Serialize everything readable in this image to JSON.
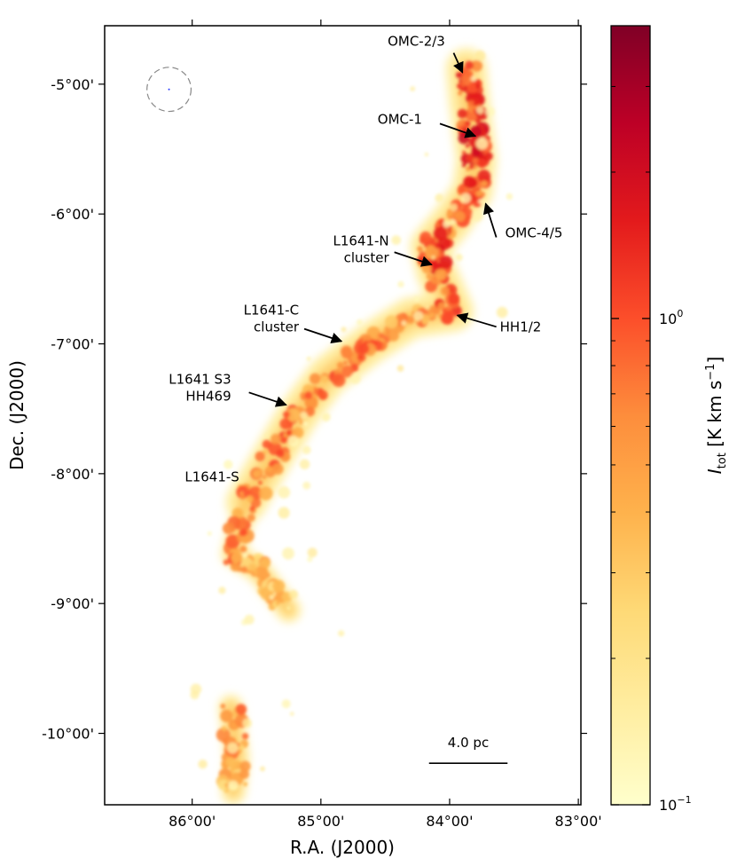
{
  "chart_data": {
    "type": "heatmap",
    "xlabel": "R.A. (J2000)",
    "ylabel": "Dec. (J2000)",
    "x_unit": "deg",
    "y_unit": "deg",
    "xlim": [
      86.68,
      82.98
    ],
    "ylim": [
      -10.55,
      -4.55
    ],
    "x_ticks": [
      {
        "value": 86.0,
        "label": "86°00'"
      },
      {
        "value": 85.0,
        "label": "85°00'"
      },
      {
        "value": 84.0,
        "label": "84°00'"
      },
      {
        "value": 83.0,
        "label": "83°00'"
      }
    ],
    "y_ticks": [
      {
        "value": -5.0,
        "label": "-5°00'"
      },
      {
        "value": -6.0,
        "label": "-6°00'"
      },
      {
        "value": -7.0,
        "label": "-7°00'"
      },
      {
        "value": -8.0,
        "label": "-8°00'"
      },
      {
        "value": -9.0,
        "label": "-9°00'"
      },
      {
        "value": -10.0,
        "label": "-10°00'"
      }
    ],
    "colorbar": {
      "label_main": "I",
      "label_sub": "tot",
      "label_unit": " [K km s",
      "label_exp": "−1",
      "label_close": "]",
      "scale": "log",
      "range": [
        0.1,
        4.0
      ],
      "ticks": [
        {
          "value": 0.1,
          "base": "10",
          "exp": "−1"
        },
        {
          "value": 1.0,
          "base": "10",
          "exp": "0"
        }
      ],
      "colormap": [
        "#ffffcc",
        "#ffeda0",
        "#fed976",
        "#feb24c",
        "#fd8d3c",
        "#fc4e2a",
        "#e31a1c",
        "#bd0026",
        "#800026"
      ]
    },
    "beam": {
      "ra": 86.18,
      "dec": -5.04,
      "radius_deg": 0.17,
      "color": "#888888"
    },
    "scale_bar": {
      "label": "4.0 pc",
      "ra_start": 84.16,
      "ra_end": 83.55,
      "dec": -10.23
    },
    "annotations": [
      {
        "label": "OMC-2/3",
        "ra": 83.9,
        "dec": -4.91,
        "arrow": true
      },
      {
        "label": "OMC-1",
        "ra": 83.8,
        "dec": -5.4,
        "arrow": true
      },
      {
        "label": "OMC-4/5",
        "ra": 83.72,
        "dec": -5.92,
        "arrow": true
      },
      {
        "label": "L1641-N",
        "label2": "cluster",
        "ra": 84.14,
        "dec": -6.39,
        "arrow": true
      },
      {
        "label": "HH1/2",
        "ra": 83.94,
        "dec": -6.78,
        "arrow": true
      },
      {
        "label": "L1641-C",
        "label2": "cluster",
        "ra": 84.84,
        "dec": -6.98,
        "arrow": true
      },
      {
        "label": "L1641 S3",
        "label2": "HH469",
        "ra": 85.27,
        "dec": -7.47,
        "arrow": true
      },
      {
        "label": "L1641-S",
        "ra": 85.62,
        "dec": -8.06,
        "arrow": false
      }
    ],
    "emission_skeleton": [
      {
        "ra": 83.87,
        "dec": -4.88,
        "I": 1.2
      },
      {
        "ra": 83.85,
        "dec": -5.1,
        "I": 1.5
      },
      {
        "ra": 83.82,
        "dec": -5.35,
        "I": 2.0
      },
      {
        "ra": 83.79,
        "dec": -5.58,
        "I": 1.6
      },
      {
        "ra": 83.82,
        "dec": -5.82,
        "I": 1.2
      },
      {
        "ra": 83.98,
        "dec": -6.05,
        "I": 1.0
      },
      {
        "ra": 84.15,
        "dec": -6.25,
        "I": 1.4
      },
      {
        "ra": 84.1,
        "dec": -6.45,
        "I": 1.3
      },
      {
        "ra": 83.97,
        "dec": -6.75,
        "I": 1.1
      },
      {
        "ra": 84.3,
        "dec": -6.8,
        "I": 0.7
      },
      {
        "ra": 84.62,
        "dec": -7.0,
        "I": 0.9
      },
      {
        "ra": 84.95,
        "dec": -7.25,
        "I": 0.9
      },
      {
        "ra": 85.18,
        "dec": -7.55,
        "I": 1.0
      },
      {
        "ra": 85.38,
        "dec": -7.88,
        "I": 0.9
      },
      {
        "ra": 85.58,
        "dec": -8.22,
        "I": 0.8
      },
      {
        "ra": 85.68,
        "dec": -8.62,
        "I": 0.9
      },
      {
        "ra": 85.48,
        "dec": -8.75,
        "I": 0.5
      },
      {
        "ra": 85.25,
        "dec": -9.05,
        "I": 0.4
      },
      {
        "ra": 85.7,
        "dec": -9.8,
        "I": 0.8
      },
      {
        "ra": 85.65,
        "dec": -10.2,
        "I": 0.6
      },
      {
        "ra": 85.68,
        "dec": -10.45,
        "I": 0.3
      }
    ]
  }
}
